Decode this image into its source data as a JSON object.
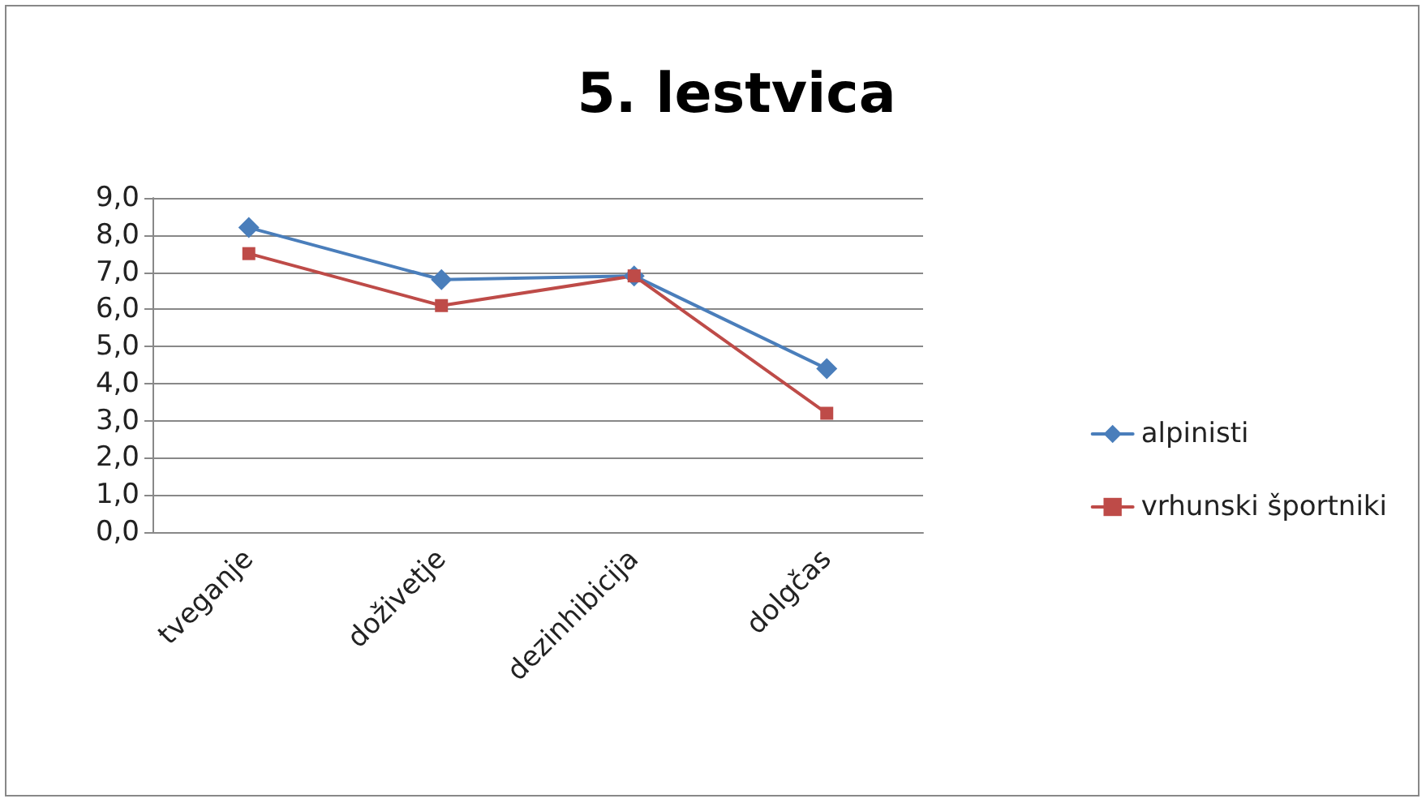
{
  "chart_data": {
    "type": "line",
    "title": "5. lestvica",
    "categories": [
      "tveganje",
      "doživetje",
      "dezinhibicija",
      "dolgčas"
    ],
    "series": [
      {
        "name": "alpinisti",
        "color": "#4a7ebb",
        "marker": "diamond",
        "values": [
          8.2,
          6.8,
          6.9,
          4.4
        ]
      },
      {
        "name": "vrhunski športniki",
        "color": "#be4b48",
        "marker": "square",
        "values": [
          7.5,
          6.1,
          6.9,
          3.2
        ]
      }
    ],
    "ylim": [
      0,
      9
    ],
    "yticks": [
      {
        "value": 0,
        "label": "0,0"
      },
      {
        "value": 1,
        "label": "1,0"
      },
      {
        "value": 2,
        "label": "2,0"
      },
      {
        "value": 3,
        "label": "3,0"
      },
      {
        "value": 4,
        "label": "4,0"
      },
      {
        "value": 5,
        "label": "5,0"
      },
      {
        "value": 6,
        "label": "6,0"
      },
      {
        "value": 7,
        "label": "7,0"
      },
      {
        "value": 8,
        "label": "8,0"
      },
      {
        "value": 9,
        "label": "9,0"
      }
    ],
    "grid": "y",
    "legend": "right",
    "line_style": "solid"
  }
}
